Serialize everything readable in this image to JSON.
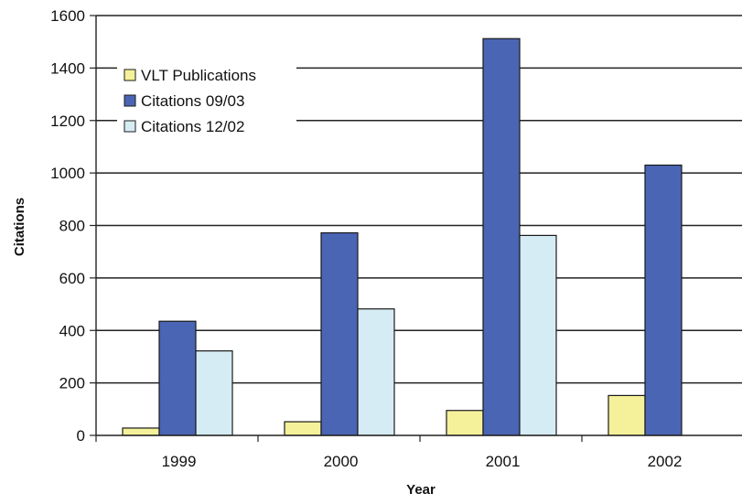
{
  "chart_data": {
    "type": "bar",
    "title": "",
    "xlabel": "Year",
    "ylabel": "Citations",
    "categories": [
      "1999",
      "2000",
      "2001",
      "2002"
    ],
    "ylim": [
      0,
      1600
    ],
    "yticks": [
      0,
      200,
      400,
      600,
      800,
      1000,
      1200,
      1400,
      1600
    ],
    "grid": "horizontal",
    "legend_position": "top-left",
    "series": [
      {
        "name": "VLT Publications",
        "color": "#f5f19a",
        "values": [
          28,
          52,
          95,
          152
        ]
      },
      {
        "name": "Citations 09/03",
        "color": "#4a65b4",
        "values": [
          435,
          772,
          1512,
          1030
        ]
      },
      {
        "name": "Citations 12/02",
        "color": "#d6ecf4",
        "values": [
          322,
          482,
          762,
          null
        ]
      }
    ]
  }
}
